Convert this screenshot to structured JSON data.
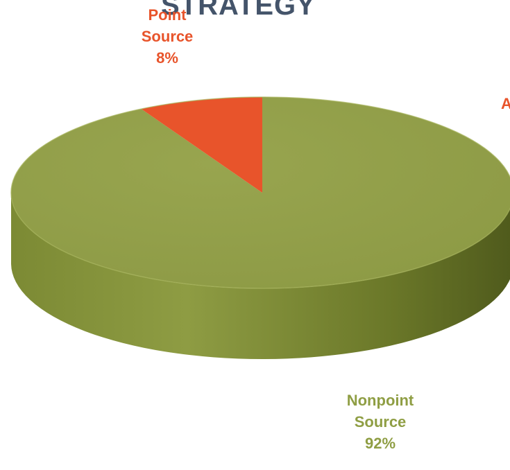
{
  "title": "STRATEGY",
  "edge_fragment": "A",
  "colors": {
    "nonpoint": "#93a04b",
    "nonpoint_dark": "#5e6a23",
    "point": "#e8542b",
    "label_point": "#e8542b",
    "label_nonpoint": "#8f9e44",
    "title": "#44546a"
  },
  "chart_data": {
    "type": "pie",
    "title": "STRATEGY",
    "slices": [
      {
        "label": "Point Source",
        "value": 8,
        "display": "8%"
      },
      {
        "label": "Nonpoint Source",
        "value": 92,
        "display": "92%"
      }
    ]
  },
  "labels": {
    "point": {
      "line1": "Point",
      "line2": "Source",
      "pct": "8%"
    },
    "nonpoint": {
      "line1": "Nonpoint",
      "line2": "Source",
      "pct": "92%"
    }
  }
}
